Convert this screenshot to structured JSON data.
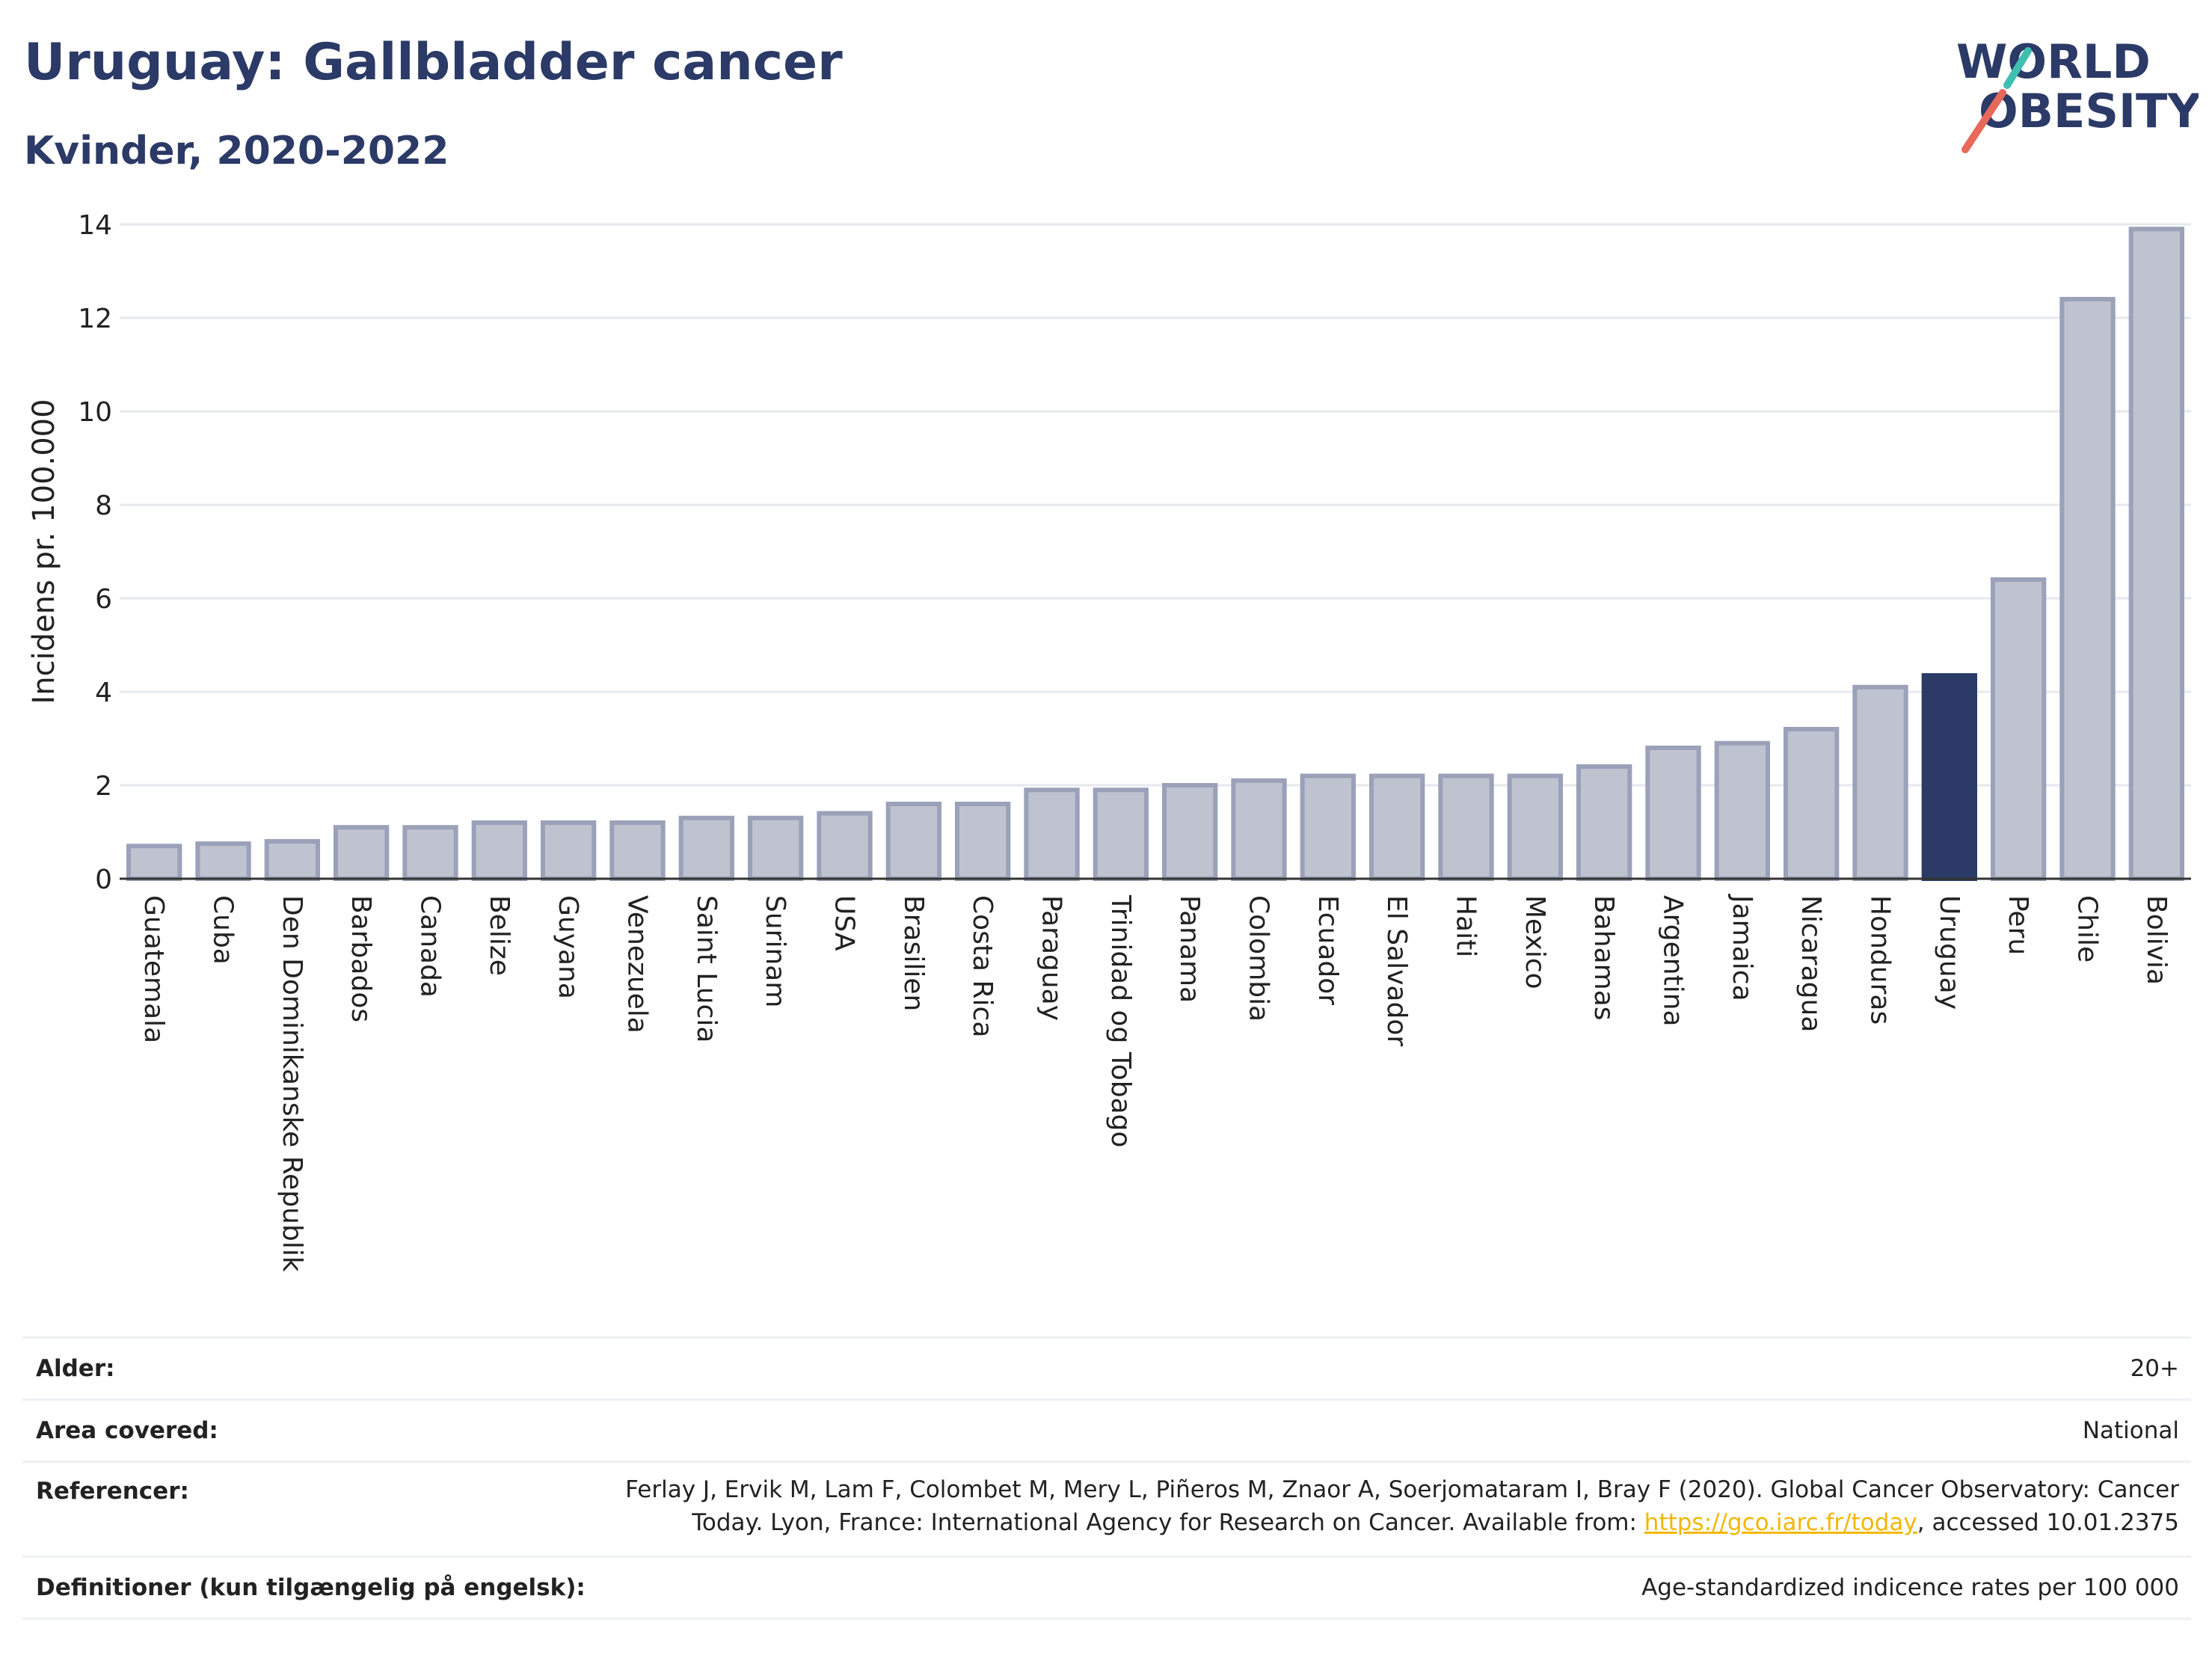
{
  "header": {
    "title": "Uruguay: Gallbladder cancer",
    "subtitle": "Kvinder, 2020-2022"
  },
  "logo": {
    "line1": "WORLD",
    "line2": "OBESITY",
    "colors": {
      "text": "#2b3a67",
      "slash_red": "#e8685a",
      "slash_teal": "#3fbfb0"
    }
  },
  "colors": {
    "bar_fill": "#bfc3d0",
    "bar_stroke": "#9aa1b8",
    "highlight": "#2b3a67",
    "grid": "#e6e8ee",
    "axis": "#333333"
  },
  "chart_data": {
    "type": "bar",
    "title": "Uruguay: Gallbladder cancer",
    "subtitle": "Kvinder, 2020-2022",
    "xlabel": "",
    "ylabel": "Incidens pr. 100.000",
    "ylim": [
      0,
      14
    ],
    "yticks": [
      0,
      2,
      4,
      6,
      8,
      10,
      12,
      14
    ],
    "grid": true,
    "highlight": "Uruguay",
    "categories": [
      "Guatemala",
      "Cuba",
      "Den Dominikanske Republik",
      "Barbados",
      "Canada",
      "Belize",
      "Guyana",
      "Venezuela",
      "Saint Lucia",
      "Surinam",
      "USA",
      "Brasilien",
      "Costa Rica",
      "Paraguay",
      "Trinidad og Tobago",
      "Panama",
      "Colombia",
      "Ecuador",
      "El Salvador",
      "Haiti",
      "Mexico",
      "Bahamas",
      "Argentina",
      "Jamaica",
      "Nicaragua",
      "Honduras",
      "Uruguay",
      "Peru",
      "Chile",
      "Bolivia"
    ],
    "values": [
      0.7,
      0.75,
      0.8,
      1.1,
      1.1,
      1.2,
      1.2,
      1.2,
      1.3,
      1.3,
      1.4,
      1.6,
      1.6,
      1.9,
      1.9,
      2.0,
      2.1,
      2.2,
      2.2,
      2.2,
      2.2,
      2.4,
      2.8,
      2.9,
      3.2,
      4.1,
      4.35,
      6.4,
      12.4,
      13.9
    ]
  },
  "meta": {
    "age_label": "Alder:",
    "age_value": "20+",
    "area_label": "Area covered:",
    "area_value": "National",
    "ref_label": "Referencer:",
    "ref_line1": "Ferlay J, Ervik M, Lam F, Colombet M, Mery L, Piñeros M, Znaor A, Soerjomataram I, Bray F (2020). Global Cancer Observatory: Cancer",
    "ref_line2_pre": "Today. Lyon, France: International Agency for Research on Cancer. Available from: ",
    "ref_link": "https://gco.iarc.fr/today",
    "ref_line2_post": ", accessed 10.01.2375",
    "def_label": "Definitioner (kun tilgængelig på engelsk):",
    "def_value": "Age-standardized indicence rates per 100 000"
  }
}
